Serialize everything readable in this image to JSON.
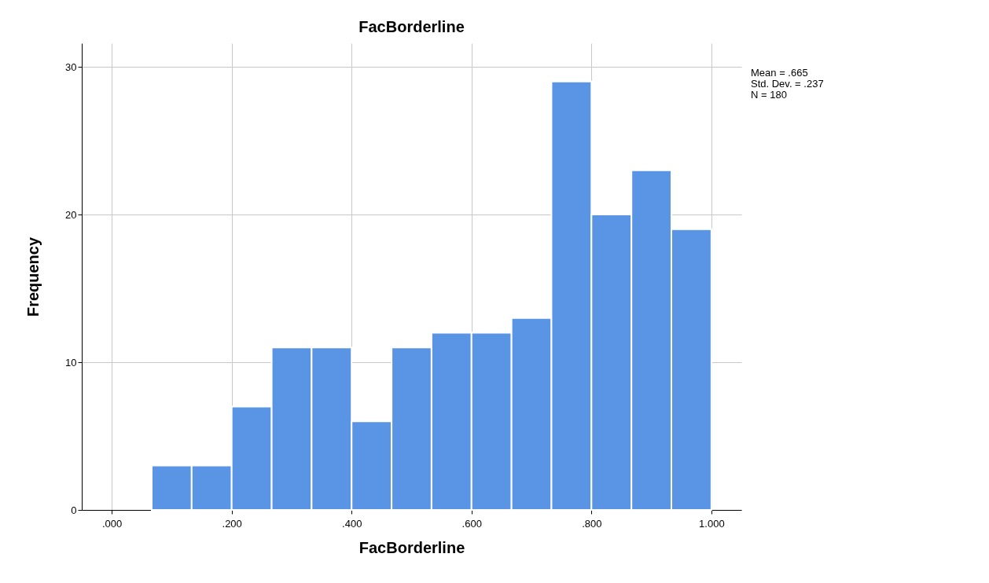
{
  "chart_data": {
    "type": "histogram",
    "title": "FacBorderline",
    "xlabel": "FacBorderline",
    "ylabel": "Frequency",
    "bins": [
      0.0667,
      0.1333,
      0.2,
      0.2667,
      0.3333,
      0.4,
      0.4667,
      0.5333,
      0.6,
      0.6667,
      0.7333,
      0.8,
      0.8667,
      0.9333,
      1.0
    ],
    "values": [
      3,
      3,
      7,
      11,
      11,
      6,
      11,
      12,
      12,
      13,
      29,
      20,
      23,
      19
    ],
    "color": "#5995e4",
    "xlim": [
      -0.05,
      1.05
    ],
    "xticks": [
      {
        "value": 0,
        "label": ".000"
      },
      {
        "value": 0.2,
        "label": ".200"
      },
      {
        "value": 0.4,
        "label": ".400"
      },
      {
        "value": 0.6,
        "label": ".600"
      },
      {
        "value": 0.8,
        "label": ".800"
      },
      {
        "value": 1,
        "label": "1.000"
      }
    ],
    "ylim": [
      0,
      31.6
    ],
    "yticks": [
      0,
      10,
      20,
      30
    ],
    "grid": true,
    "annotations": [
      "Mean = .665",
      "Std. Dev. = .237",
      "N = 180"
    ]
  }
}
